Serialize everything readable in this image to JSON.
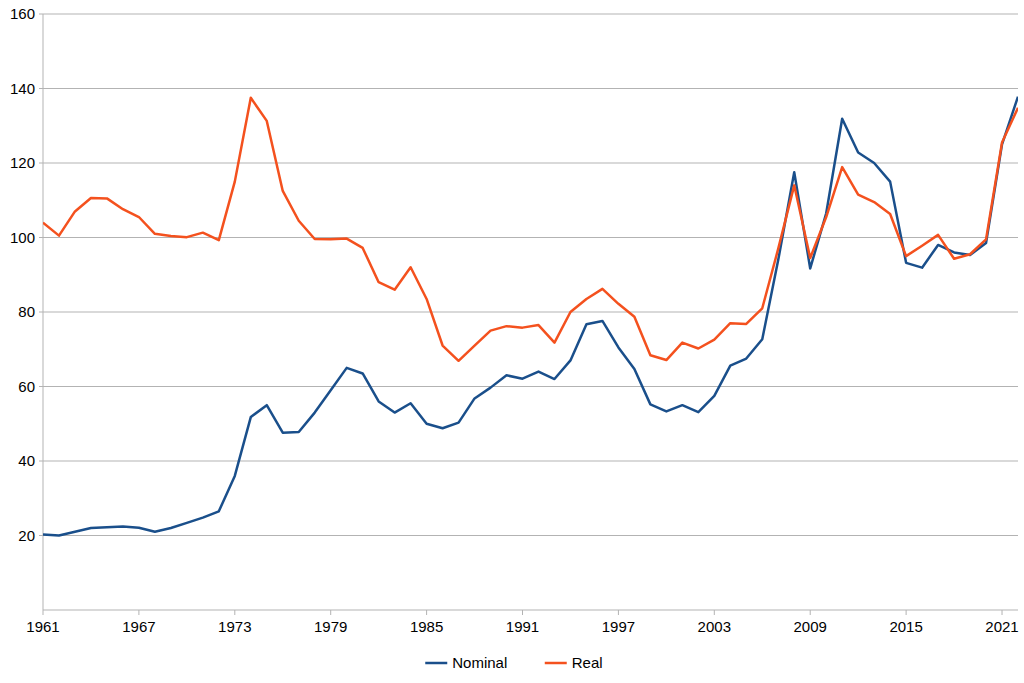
{
  "chart_data": {
    "type": "line",
    "x": [
      1961,
      1962,
      1963,
      1964,
      1965,
      1966,
      1967,
      1968,
      1969,
      1970,
      1971,
      1972,
      1973,
      1974,
      1975,
      1976,
      1977,
      1978,
      1979,
      1980,
      1981,
      1982,
      1983,
      1984,
      1985,
      1986,
      1987,
      1988,
      1989,
      1990,
      1991,
      1992,
      1993,
      1994,
      1995,
      1996,
      1997,
      1998,
      1999,
      2000,
      2001,
      2002,
      2003,
      2004,
      2005,
      2006,
      2007,
      2008,
      2009,
      2010,
      2011,
      2012,
      2013,
      2014,
      2015,
      2016,
      2017,
      2018,
      2019,
      2020,
      2021,
      2022
    ],
    "series": [
      {
        "name": "Nominal",
        "color": "#1a4f8b",
        "values": [
          20.3,
          20.0,
          21.0,
          22.0,
          22.2,
          22.4,
          22.1,
          21.0,
          22.0,
          23.4,
          24.8,
          26.5,
          36.0,
          51.8,
          55.0,
          47.6,
          47.8,
          53.0,
          59.0,
          65.0,
          63.5,
          56.0,
          53.0,
          55.5,
          50.0,
          48.8,
          50.3,
          56.8,
          59.7,
          63.0,
          62.1,
          64.0,
          62.0,
          67.0,
          76.7,
          77.6,
          70.5,
          64.7,
          55.2,
          53.3,
          55.0,
          53.1,
          57.5,
          65.6,
          67.5,
          72.7,
          94.0,
          117.5,
          91.7,
          106.5,
          131.9,
          122.8,
          120.0,
          115.0,
          93.2,
          91.9,
          98.0,
          96.0,
          95.3,
          98.5,
          125.0,
          137.8
        ]
      },
      {
        "name": "Real",
        "color": "#f4511e",
        "values": [
          104.0,
          100.5,
          107.0,
          110.6,
          110.5,
          107.6,
          105.5,
          101.0,
          100.4,
          100.1,
          101.3,
          99.3,
          115.0,
          137.5,
          131.3,
          112.5,
          104.5,
          99.6,
          99.5,
          99.7,
          97.2,
          88.0,
          86.0,
          92.0,
          83.5,
          71.0,
          66.9,
          71.0,
          75.0,
          76.2,
          75.8,
          76.5,
          71.8,
          80.0,
          83.5,
          86.2,
          82.2,
          78.7,
          68.4,
          67.1,
          71.8,
          70.2,
          72.6,
          77.0,
          76.8,
          81.0,
          97.0,
          114.0,
          94.5,
          105.5,
          118.9,
          111.5,
          109.5,
          106.3,
          95.0,
          97.8,
          100.7,
          94.3,
          95.5,
          99.5,
          125.5,
          134.8
        ]
      }
    ],
    "xlim": [
      1961,
      2022
    ],
    "xticks": [
      1961,
      1967,
      1973,
      1979,
      1985,
      1991,
      1997,
      2003,
      2009,
      2015,
      2021
    ],
    "ylim": [
      0,
      160
    ],
    "yticks": [
      20,
      40,
      60,
      80,
      100,
      120,
      140,
      160
    ],
    "grid": true,
    "legend": "bottom"
  }
}
